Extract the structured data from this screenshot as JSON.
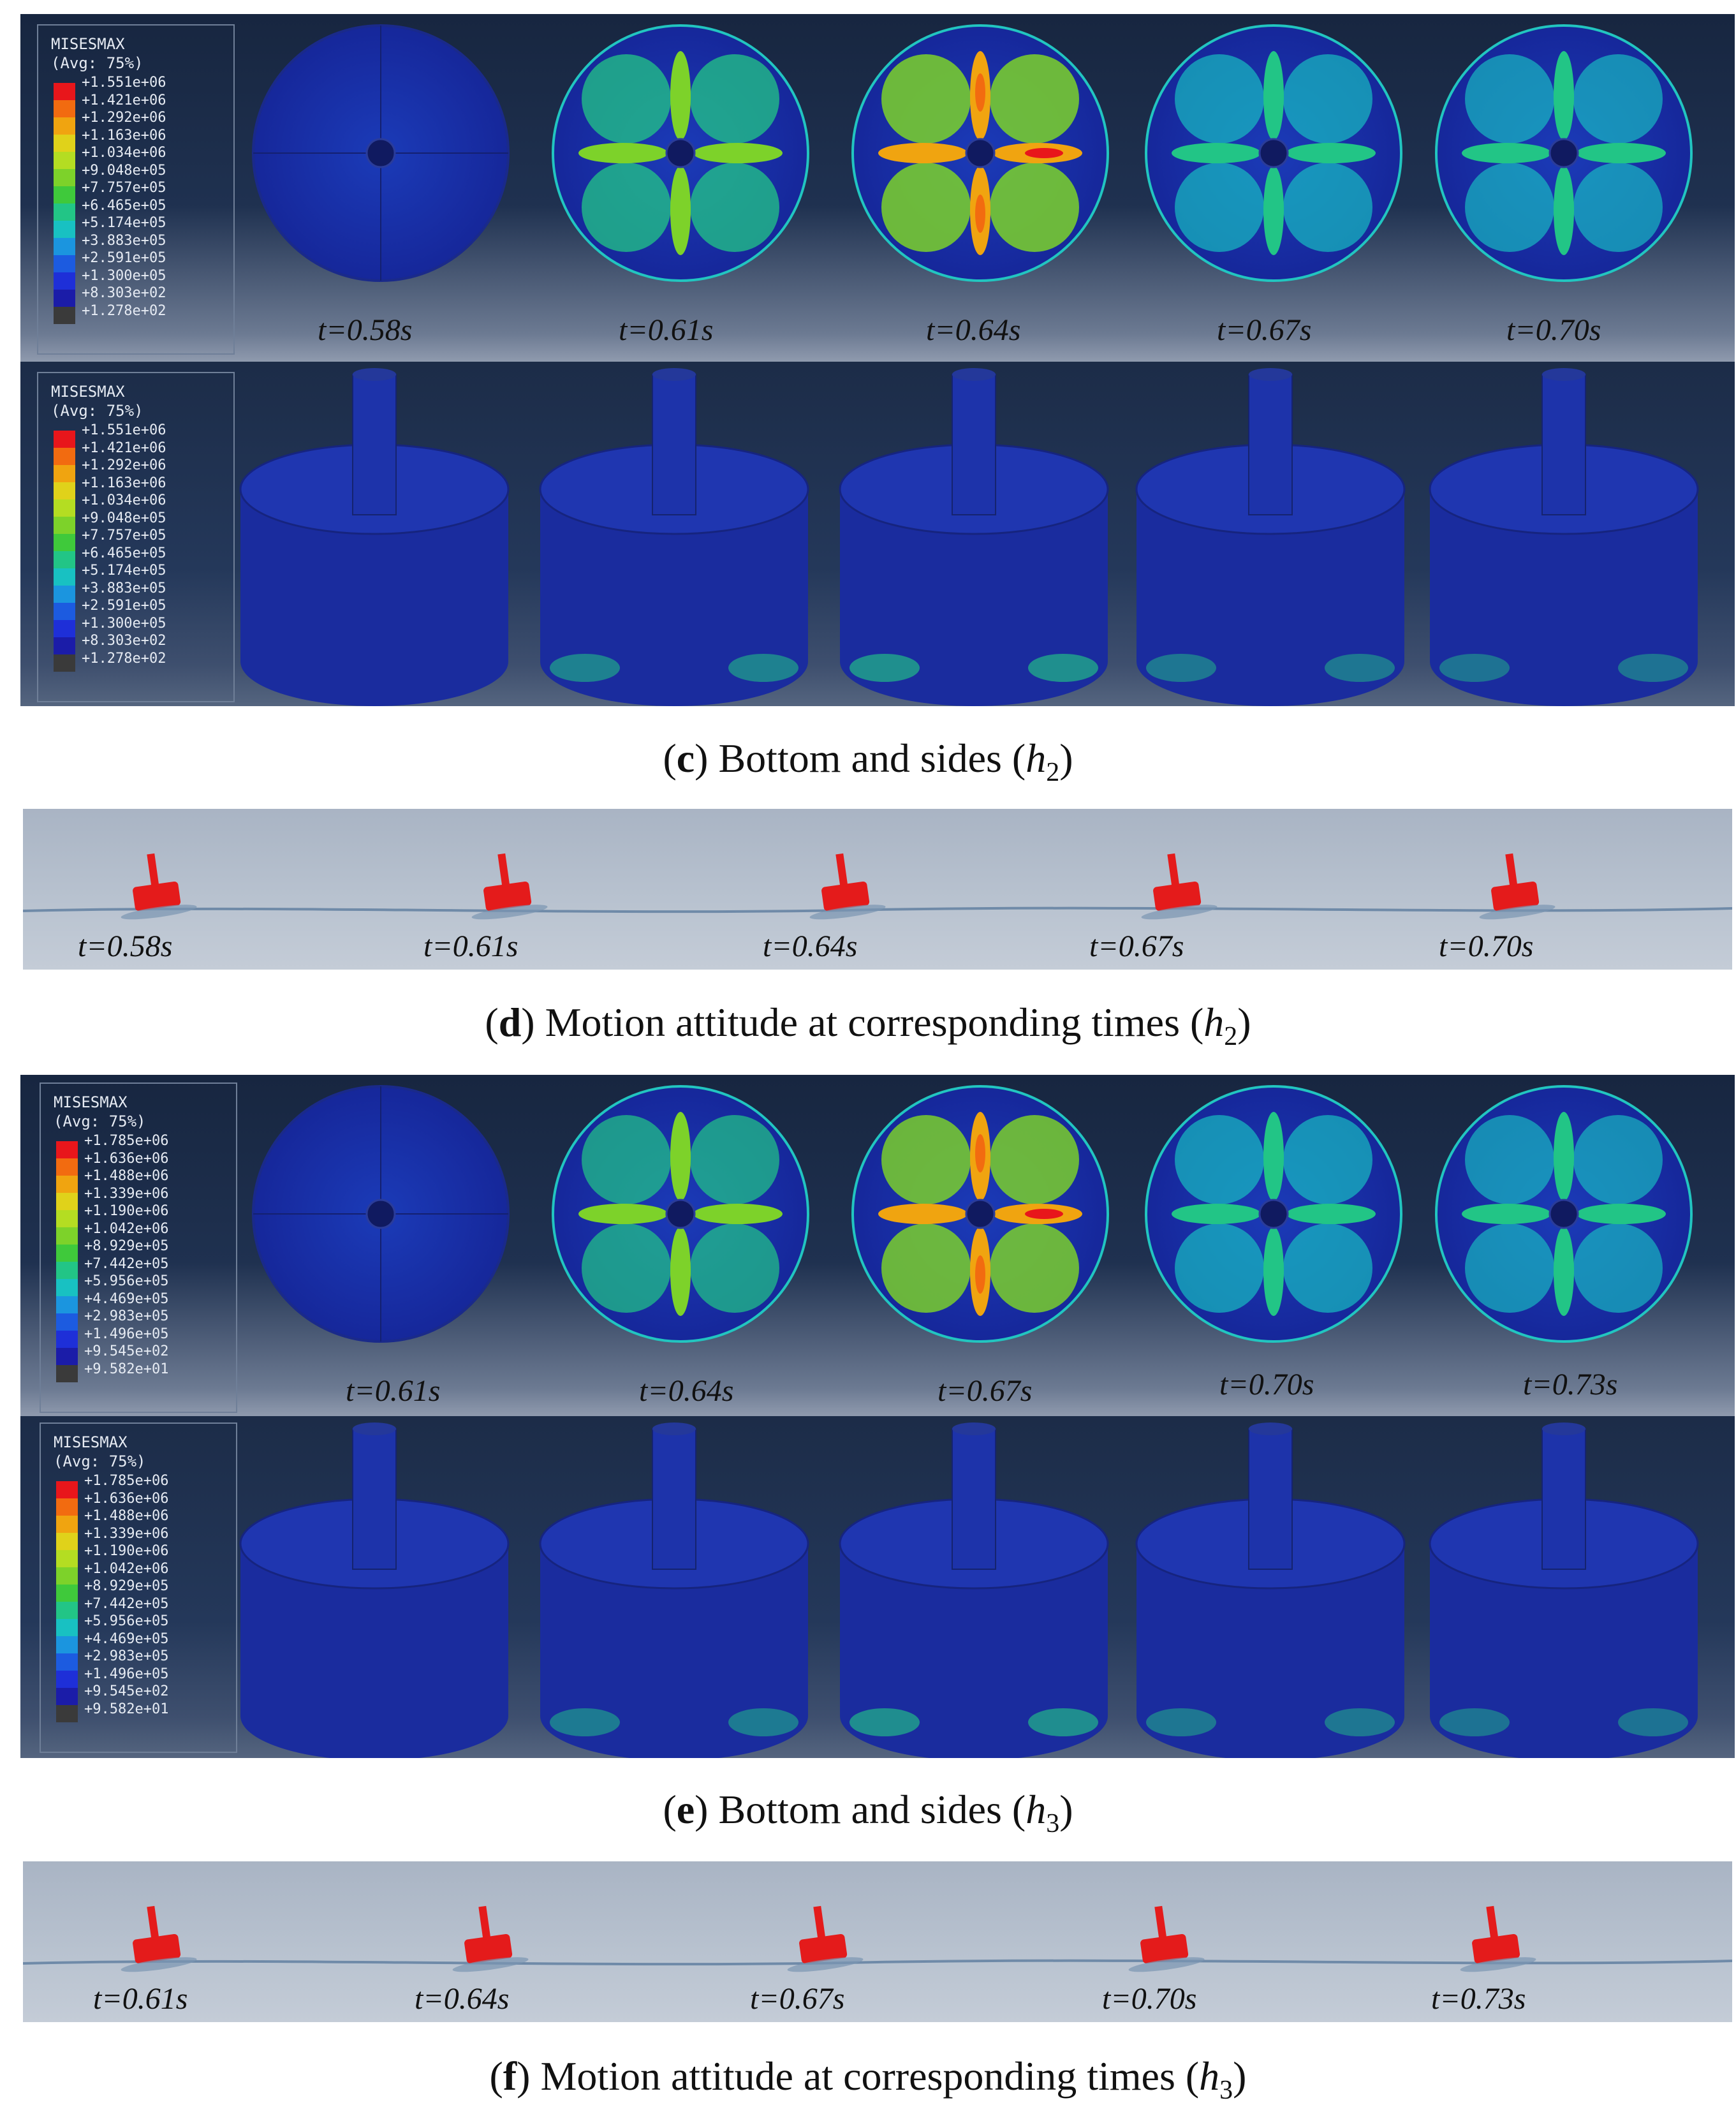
{
  "legend_h2": {
    "title": "MISESMAX",
    "subtitle": "(Avg: 75%)",
    "values": [
      "+1.551e+06",
      "+1.421e+06",
      "+1.292e+06",
      "+1.163e+06",
      "+1.034e+06",
      "+9.048e+05",
      "+7.757e+05",
      "+6.465e+05",
      "+5.174e+05",
      "+3.883e+05",
      "+2.591e+05",
      "+1.300e+05",
      "+8.303e+02",
      "+1.278e+02"
    ]
  },
  "legend_h3": {
    "title": "MISESMAX",
    "subtitle": "(Avg: 75%)",
    "values": [
      "+1.785e+06",
      "+1.636e+06",
      "+1.488e+06",
      "+1.339e+06",
      "+1.190e+06",
      "+1.042e+06",
      "+8.929e+05",
      "+7.442e+05",
      "+5.956e+05",
      "+4.469e+05",
      "+2.983e+05",
      "+1.496e+05",
      "+9.545e+02",
      "+9.582e+01"
    ]
  },
  "colors": {
    "scale": [
      "#e8161b",
      "#f26b10",
      "#f0a410",
      "#e0d21a",
      "#b4dd22",
      "#7dd22a",
      "#3fc93b",
      "#22c586",
      "#18c1c2",
      "#1b95df",
      "#1c5be0",
      "#1e2fd8",
      "#1b1ca8",
      "#3a3a3a"
    ],
    "buoy": "#e41b1b"
  },
  "panel_c": {
    "times": [
      "t=0.58s",
      "t=0.61s",
      "t=0.64s",
      "t=0.67s",
      "t=0.70s"
    ],
    "intensity": [
      0.05,
      0.7,
      1.0,
      0.45,
      0.38
    ]
  },
  "panel_d": {
    "times": [
      "t=0.58s",
      "t=0.61s",
      "t=0.64s",
      "t=0.67s",
      "t=0.70s"
    ]
  },
  "panel_e": {
    "times": [
      "t=0.61s",
      "t=0.64s",
      "t=0.67s",
      "t=0.70s",
      "t=0.73s"
    ],
    "intensity": [
      0.05,
      0.55,
      0.95,
      0.45,
      0.35
    ]
  },
  "panel_f": {
    "times": [
      "t=0.61s",
      "t=0.64s",
      "t=0.67s",
      "t=0.70s",
      "t=0.73s"
    ]
  },
  "captions": {
    "c": {
      "letter": "c",
      "text": " Bottom and sides (",
      "var": "h",
      "sub": "2",
      "end": ")"
    },
    "d": {
      "letter": "d",
      "text": " Motion attitude at corresponding times (",
      "var": "h",
      "sub": "2",
      "end": ")"
    },
    "e": {
      "letter": "e",
      "text": " Bottom and sides (",
      "var": "h",
      "sub": "3",
      "end": ")"
    },
    "f": {
      "letter": "f",
      "text": " Motion attitude at corresponding times (",
      "var": "h",
      "sub": "3",
      "end": ")"
    }
  }
}
